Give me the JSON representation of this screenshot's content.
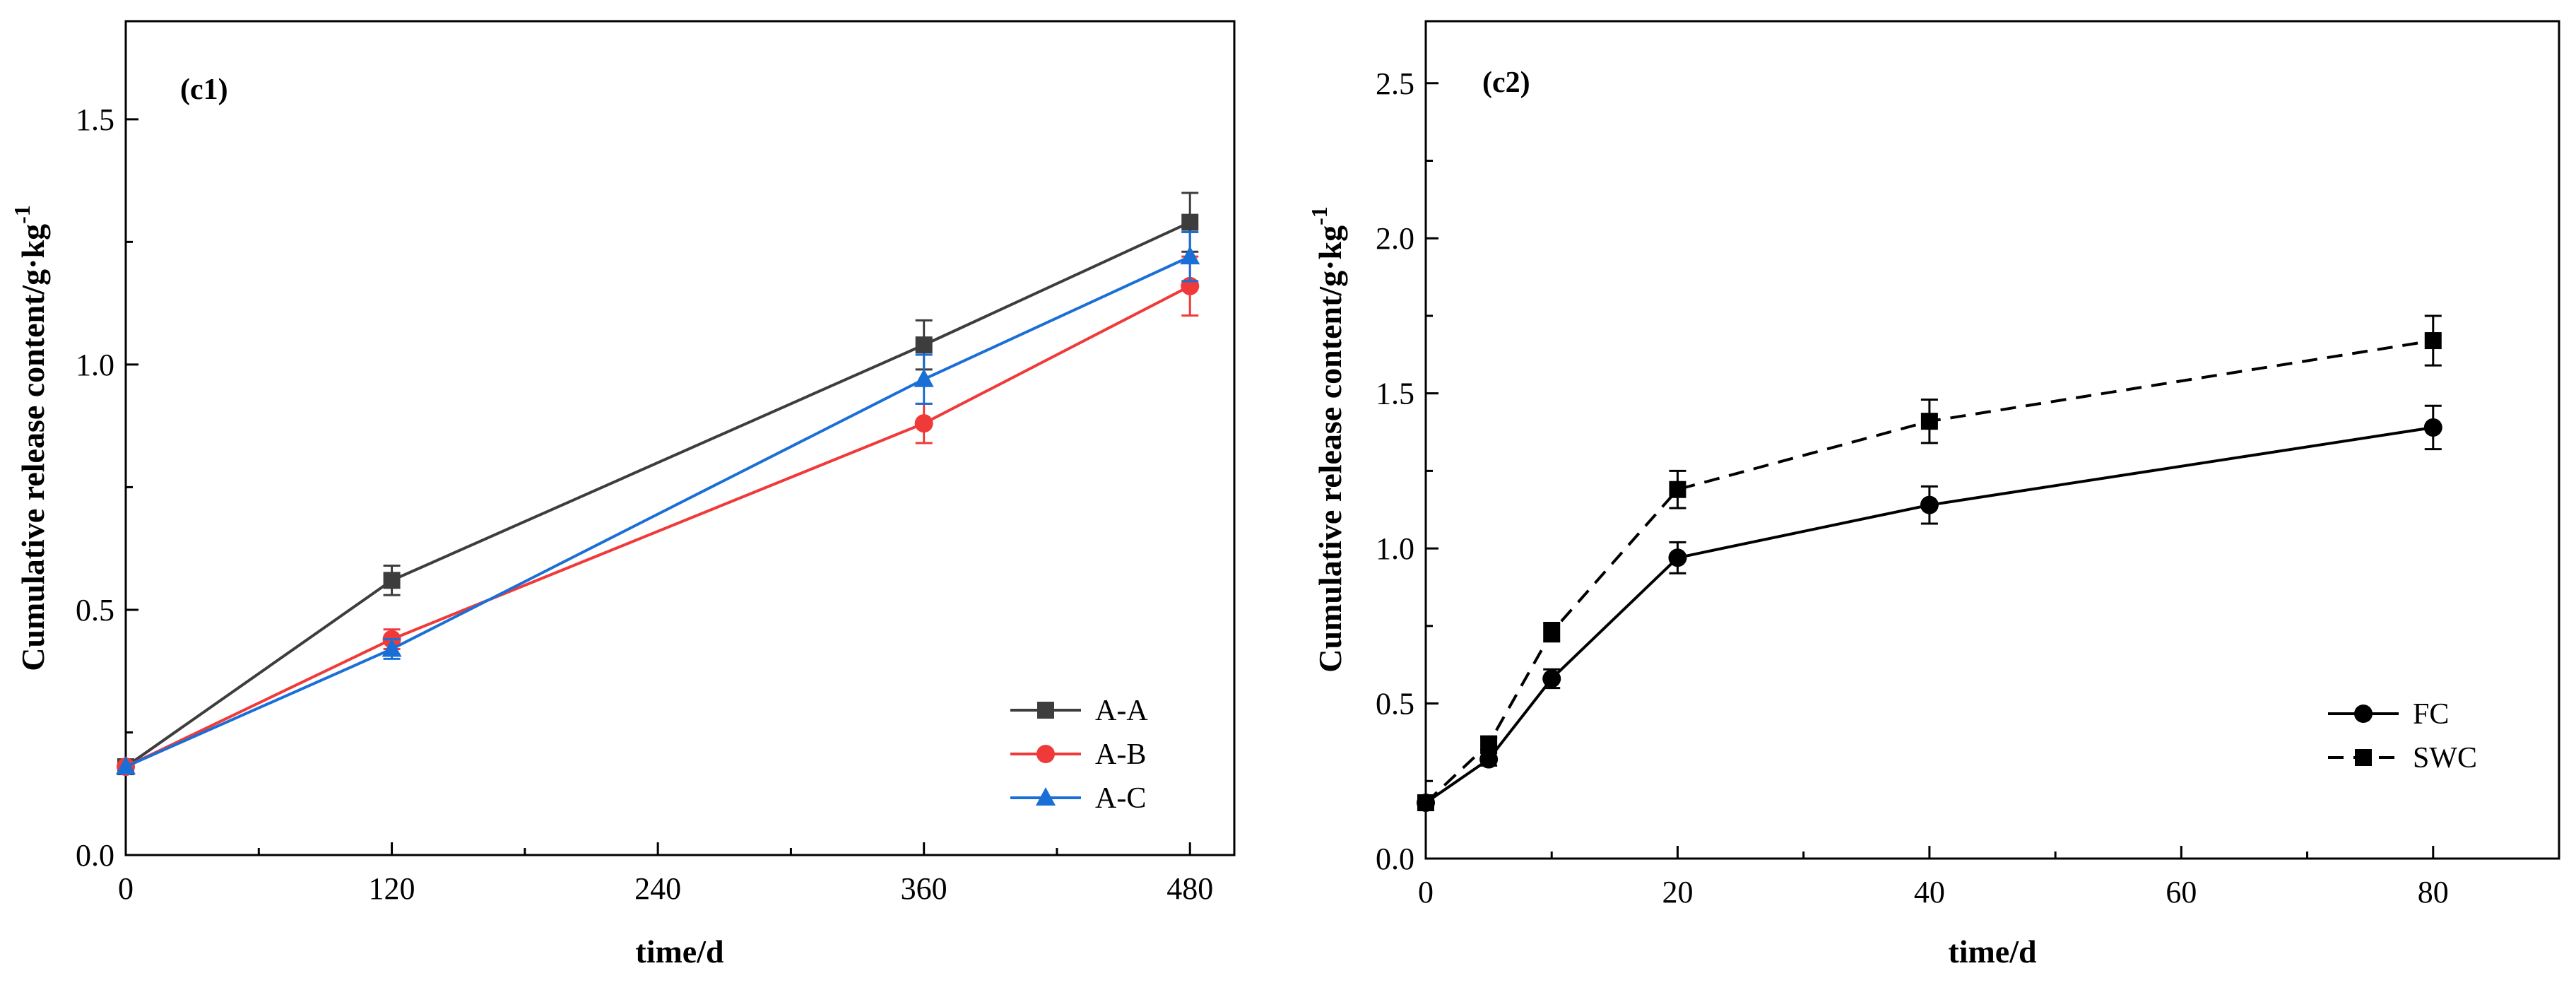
{
  "chart_data": [
    {
      "type": "line",
      "panel_label": "(c1)",
      "xlabel": "time/d",
      "ylabel": "Cumulative release content/g·kg",
      "ylabel_superscript": "-1",
      "xlim": [
        0,
        500
      ],
      "ylim": [
        0,
        1.7
      ],
      "xticks": [
        0,
        120,
        240,
        360,
        480
      ],
      "yticks": [
        0.0,
        0.5,
        1.0,
        1.5
      ],
      "ytick_labels": [
        "0.0",
        "0.5",
        "1.0",
        "1.5"
      ],
      "grid": false,
      "legend_position": "bottom-right",
      "x": [
        0,
        120,
        360,
        480
      ],
      "series": [
        {
          "name": "A-A",
          "color": "#3d3d3d",
          "marker": "square",
          "dashed": false,
          "values": [
            0.18,
            0.56,
            1.04,
            1.29
          ],
          "errors": [
            0.01,
            0.03,
            0.05,
            0.06
          ]
        },
        {
          "name": "A-B",
          "color": "#f03a3a",
          "marker": "circle",
          "dashed": false,
          "values": [
            0.18,
            0.44,
            0.88,
            1.16
          ],
          "errors": [
            0.01,
            0.02,
            0.04,
            0.06
          ]
        },
        {
          "name": "A-C",
          "color": "#1a6fd6",
          "marker": "triangle",
          "dashed": false,
          "values": [
            0.18,
            0.42,
            0.97,
            1.22
          ],
          "errors": [
            0.01,
            0.02,
            0.05,
            0.05
          ]
        }
      ]
    },
    {
      "type": "line",
      "panel_label": "(c2)",
      "xlabel": "time/d",
      "ylabel": "Cumulative release content/g·kg",
      "ylabel_superscript": "-1",
      "xlim": [
        0,
        90
      ],
      "ylim": [
        0,
        2.7
      ],
      "xticks": [
        0,
        20,
        40,
        60,
        80
      ],
      "yticks": [
        0.0,
        0.5,
        1.0,
        1.5,
        2.0,
        2.5
      ],
      "ytick_labels": [
        "0.0",
        "0.5",
        "1.0",
        "1.5",
        "2.0",
        "2.5"
      ],
      "grid": false,
      "legend_position": "bottom-right",
      "x": [
        0,
        5,
        10,
        20,
        40,
        80
      ],
      "series": [
        {
          "name": "FC",
          "color": "#000000",
          "marker": "circle",
          "dashed": false,
          "values": [
            0.18,
            0.32,
            0.58,
            0.97,
            1.14,
            1.39
          ],
          "errors": [
            0.01,
            0.02,
            0.03,
            0.05,
            0.06,
            0.07
          ]
        },
        {
          "name": "SWC",
          "color": "#000000",
          "marker": "square",
          "dashed": true,
          "values": [
            0.18,
            0.37,
            0.73,
            1.19,
            1.41,
            1.67
          ],
          "errors": [
            0.01,
            0.02,
            0.03,
            0.06,
            0.07,
            0.08
          ]
        }
      ]
    }
  ]
}
